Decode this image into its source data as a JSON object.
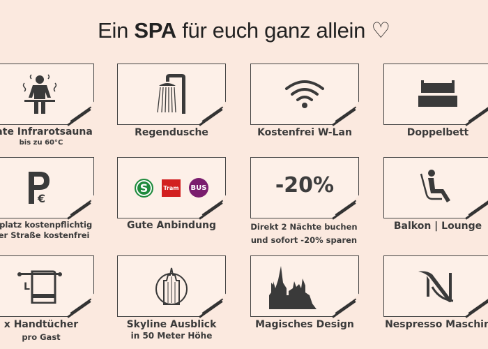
{
  "title": {
    "pre": "Ein",
    "bold": "SPA",
    "post": "für euch ganz allein ♡"
  },
  "colors": {
    "background": "#fbe9df",
    "text": "#333333",
    "sbahn": "#1e8a3c",
    "tram": "#d21f1f",
    "bus": "#7a1d6e"
  },
  "items": [
    {
      "icon": "sauna-icon",
      "label": "vate Infrarotsauna",
      "sub": "bis zu 60°C"
    },
    {
      "icon": "shower-icon",
      "label": "Regendusche"
    },
    {
      "icon": "wifi-icon",
      "label": "Kostenfrei W-Lan"
    },
    {
      "icon": "bed-icon",
      "label": "Doppelbett"
    },
    {
      "icon": "parking-icon",
      "label": "rkplatz kostenpflichtig",
      "sub": "der Straße kostenfrei"
    },
    {
      "icon": "transit-icons",
      "label": "Gute Anbindung",
      "badges": [
        "S",
        "Tram",
        "BUS"
      ]
    },
    {
      "icon": "discount",
      "value": "-20%",
      "label": "Direkt 2 Nächte buchen",
      "sub": "und sofort -20% sparen"
    },
    {
      "icon": "lounge-chair-icon",
      "label": "Balkon | Lounge"
    },
    {
      "icon": "towel-icon",
      "label": "x Handtücher",
      "sub": "pro Gast",
      "towel_letter": "L"
    },
    {
      "icon": "skyscraper-icon",
      "label": "Skyline Ausblick",
      "sub": "in 50 Meter Höhe"
    },
    {
      "icon": "castle-silhouette-icon",
      "label": "Magisches Design"
    },
    {
      "icon": "nespresso-logo-icon",
      "label": "Nespresso Maschin"
    }
  ]
}
